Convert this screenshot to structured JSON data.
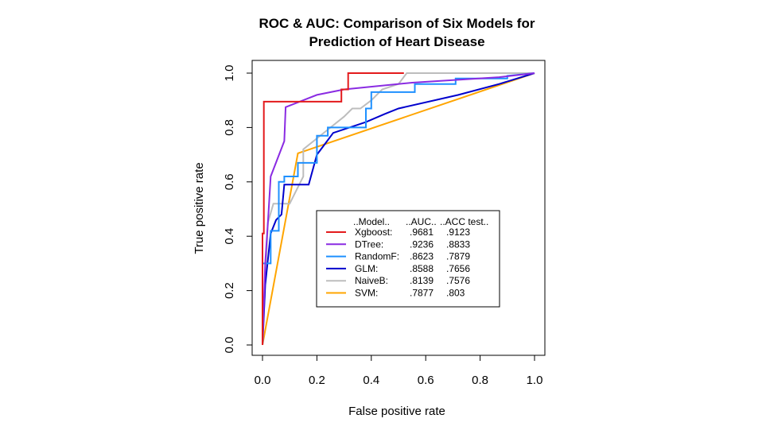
{
  "chart_data": {
    "type": "line",
    "title_line1": "ROC & AUC: Comparison of Six Models for",
    "title_line2": "Prediction of Heart Disease",
    "xlabel": "False positive rate",
    "ylabel": "True positive rate",
    "xlim": [
      0,
      1
    ],
    "ylim": [
      0,
      1
    ],
    "x_ticks": [
      "0.0",
      "0.2",
      "0.4",
      "0.6",
      "0.8",
      "1.0"
    ],
    "y_ticks": [
      "0.0",
      "0.2",
      "0.4",
      "0.6",
      "0.8",
      "1.0"
    ],
    "grid": false,
    "legend_position": "center-right",
    "legend_header": {
      "model": "..Model..",
      "auc": "..AUC..",
      "acc": "..ACC test.."
    },
    "series": [
      {
        "name": "Xgboost:",
        "auc": ".9681",
        "acc": ".9123",
        "color": "#e31a1c",
        "x": [
          0,
          0,
          0.005,
          0.005,
          0.29,
          0.29,
          0.315,
          0.315,
          0.52
        ],
        "y": [
          0,
          0.41,
          0.41,
          0.895,
          0.895,
          0.94,
          0.94,
          1.0,
          1.0
        ]
      },
      {
        "name": "DTree:",
        "auc": ".9236",
        "acc": ".8833",
        "color": "#8a2be2",
        "x": [
          0,
          0.01,
          0.02,
          0.03,
          0.08,
          0.085,
          0.2,
          0.3,
          0.55,
          0.87,
          1.0
        ],
        "y": [
          0,
          0.3,
          0.45,
          0.62,
          0.75,
          0.875,
          0.92,
          0.94,
          0.965,
          0.985,
          1.0
        ]
      },
      {
        "name": "RandomF:",
        "auc": ".8623",
        "acc": ".7879",
        "color": "#1e90ff",
        "x": [
          0,
          0,
          0.03,
          0.03,
          0.06,
          0.06,
          0.08,
          0.08,
          0.13,
          0.13,
          0.2,
          0.2,
          0.24,
          0.24,
          0.38,
          0.38,
          0.4,
          0.4,
          0.56,
          0.56,
          0.71,
          0.71,
          0.9,
          0.9,
          1.0
        ],
        "y": [
          0,
          0.3,
          0.3,
          0.42,
          0.42,
          0.6,
          0.6,
          0.62,
          0.62,
          0.67,
          0.67,
          0.77,
          0.77,
          0.8,
          0.8,
          0.87,
          0.87,
          0.93,
          0.93,
          0.96,
          0.96,
          0.98,
          0.98,
          0.99,
          1.0
        ]
      },
      {
        "name": "GLM:",
        "auc": ".8588",
        "acc": ".7656",
        "color": "#0000cd",
        "x": [
          0,
          0.01,
          0.01,
          0.03,
          0.03,
          0.05,
          0.05,
          0.07,
          0.07,
          0.08,
          0.08,
          0.17,
          0.17,
          0.2,
          0.2,
          0.23,
          0.23,
          0.26,
          0.26,
          0.38,
          0.38,
          0.45,
          0.45,
          0.5,
          0.5,
          0.72,
          0.72,
          0.87,
          0.87,
          1.0
        ],
        "y": [
          0,
          0.22,
          0.22,
          0.41,
          0.41,
          0.46,
          0.46,
          0.48,
          0.48,
          0.59,
          0.59,
          0.59,
          0.59,
          0.7,
          0.7,
          0.74,
          0.74,
          0.78,
          0.78,
          0.82,
          0.82,
          0.85,
          0.85,
          0.87,
          0.87,
          0.92,
          0.92,
          0.96,
          0.96,
          1.0
        ]
      },
      {
        "name": "NaiveB:",
        "auc": ".8139",
        "acc": ".7576",
        "color": "#bdbdbd",
        "x": [
          0,
          0.02,
          0.04,
          0.1,
          0.15,
          0.15,
          0.2,
          0.25,
          0.3,
          0.33,
          0.36,
          0.4,
          0.42,
          0.44,
          0.5,
          0.53,
          0.6,
          0.75,
          1.0
        ],
        "y": [
          0,
          0.45,
          0.52,
          0.52,
          0.62,
          0.72,
          0.76,
          0.8,
          0.84,
          0.87,
          0.87,
          0.9,
          0.92,
          0.94,
          0.96,
          1.0,
          1.0,
          1.0,
          1.0
        ]
      },
      {
        "name": "SVM:",
        "auc": ".7877",
        "acc": ".803",
        "color": "#ffa500",
        "x": [
          0,
          0.13,
          1.0
        ],
        "y": [
          0,
          0.705,
          1.0
        ]
      }
    ]
  }
}
